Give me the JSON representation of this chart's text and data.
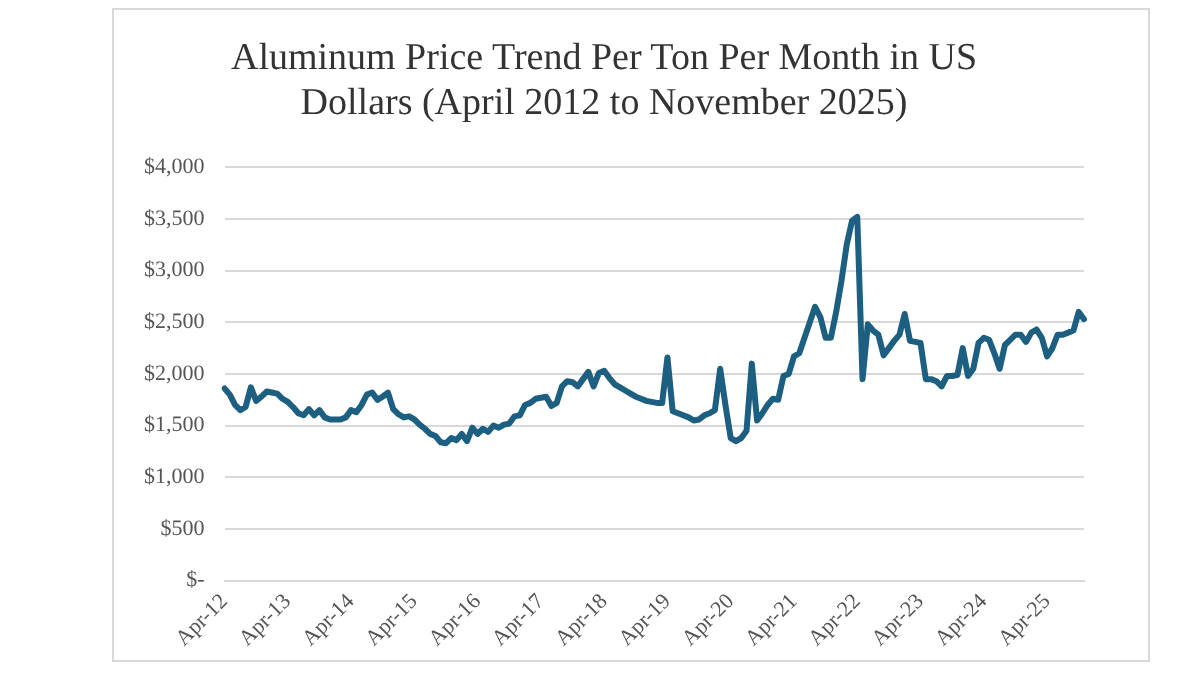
{
  "chart_data": {
    "type": "line",
    "title": "Aluminum Price Trend Per Ton Per Month in US\nDollars (April 2012 to November 2025)",
    "categories": [
      "Apr-12",
      null,
      null,
      null,
      null,
      null,
      null,
      null,
      null,
      null,
      null,
      null,
      "Apr-13",
      null,
      null,
      null,
      null,
      null,
      null,
      null,
      null,
      null,
      null,
      null,
      "Apr-14",
      null,
      null,
      null,
      null,
      null,
      null,
      null,
      null,
      null,
      null,
      null,
      "Apr-15",
      null,
      null,
      null,
      null,
      null,
      null,
      null,
      null,
      null,
      null,
      null,
      "Apr-16",
      null,
      null,
      null,
      null,
      null,
      null,
      null,
      null,
      null,
      null,
      null,
      "Apr-17",
      null,
      null,
      null,
      null,
      null,
      null,
      null,
      null,
      null,
      null,
      null,
      "Apr-18",
      null,
      null,
      null,
      null,
      null,
      null,
      null,
      null,
      null,
      null,
      null,
      "Apr-19",
      null,
      null,
      null,
      null,
      null,
      null,
      null,
      null,
      null,
      null,
      null,
      "Apr-20",
      null,
      null,
      null,
      null,
      null,
      null,
      null,
      null,
      null,
      null,
      null,
      "Apr-21",
      null,
      null,
      null,
      null,
      null,
      null,
      null,
      null,
      null,
      null,
      null,
      "Apr-22",
      null,
      null,
      null,
      null,
      null,
      null,
      null,
      null,
      null,
      null,
      null,
      "Apr-23",
      null,
      null,
      null,
      null,
      null,
      null,
      null,
      null,
      null,
      null,
      null,
      "Apr-24",
      null,
      null,
      null,
      null,
      null,
      null,
      null,
      null,
      null,
      null,
      null,
      "Apr-25",
      null,
      null,
      null,
      null,
      null,
      null,
      null
    ],
    "series": [
      {
        "color": "#1d5f80",
        "values": [
          1860,
          1800,
          1700,
          1650,
          1680,
          1870,
          1740,
          1780,
          1830,
          1820,
          1810,
          1760,
          1730,
          1680,
          1620,
          1600,
          1660,
          1600,
          1650,
          1580,
          1560,
          1560,
          1560,
          1580,
          1650,
          1630,
          1700,
          1800,
          1820,
          1750,
          1780,
          1820,
          1660,
          1610,
          1580,
          1590,
          1560,
          1510,
          1470,
          1420,
          1400,
          1340,
          1330,
          1380,
          1360,
          1420,
          1350,
          1480,
          1420,
          1470,
          1440,
          1500,
          1480,
          1510,
          1520,
          1590,
          1600,
          1700,
          1720,
          1760,
          1770,
          1780,
          1690,
          1720,
          1880,
          1930,
          1920,
          1880,
          1950,
          2020,
          1880,
          2010,
          2030,
          1960,
          1900,
          1870,
          1840,
          1810,
          1780,
          1760,
          1740,
          1730,
          1720,
          1720,
          2160,
          1640,
          1620,
          1600,
          1580,
          1550,
          1560,
          1600,
          1620,
          1650,
          2050,
          1700,
          1380,
          1350,
          1380,
          1450,
          2100,
          1550,
          1620,
          1700,
          1760,
          1750,
          1980,
          2000,
          2170,
          2200,
          2350,
          2500,
          2650,
          2550,
          2350,
          2350,
          2600,
          2900,
          3250,
          3480,
          3520,
          1950,
          2480,
          2420,
          2380,
          2180,
          2250,
          2320,
          2380,
          2580,
          2320,
          2310,
          2300,
          1950,
          1950,
          1930,
          1880,
          1980,
          1980,
          1990,
          2250,
          1980,
          2050,
          2300,
          2350,
          2330,
          2200,
          2050,
          2280,
          2330,
          2380,
          2380,
          2310,
          2400,
          2430,
          2350,
          2170,
          2250,
          2380,
          2380,
          2400,
          2420,
          2600,
          2530
        ]
      }
    ],
    "ylim": [
      0,
      4000
    ],
    "yticks": [
      {
        "value": 0,
        "label": "$-"
      },
      {
        "value": 500,
        "label": "$500"
      },
      {
        "value": 1000,
        "label": "$1,000"
      },
      {
        "value": 1500,
        "label": "$1,500"
      },
      {
        "value": 2000,
        "label": "$2,000"
      },
      {
        "value": 2500,
        "label": "$2,500"
      },
      {
        "value": 3000,
        "label": "$3,000"
      },
      {
        "value": 3500,
        "label": "$3,500"
      },
      {
        "value": 4000,
        "label": "$4,000"
      }
    ],
    "grid": "y",
    "marker": "none",
    "line_style": "solid"
  }
}
